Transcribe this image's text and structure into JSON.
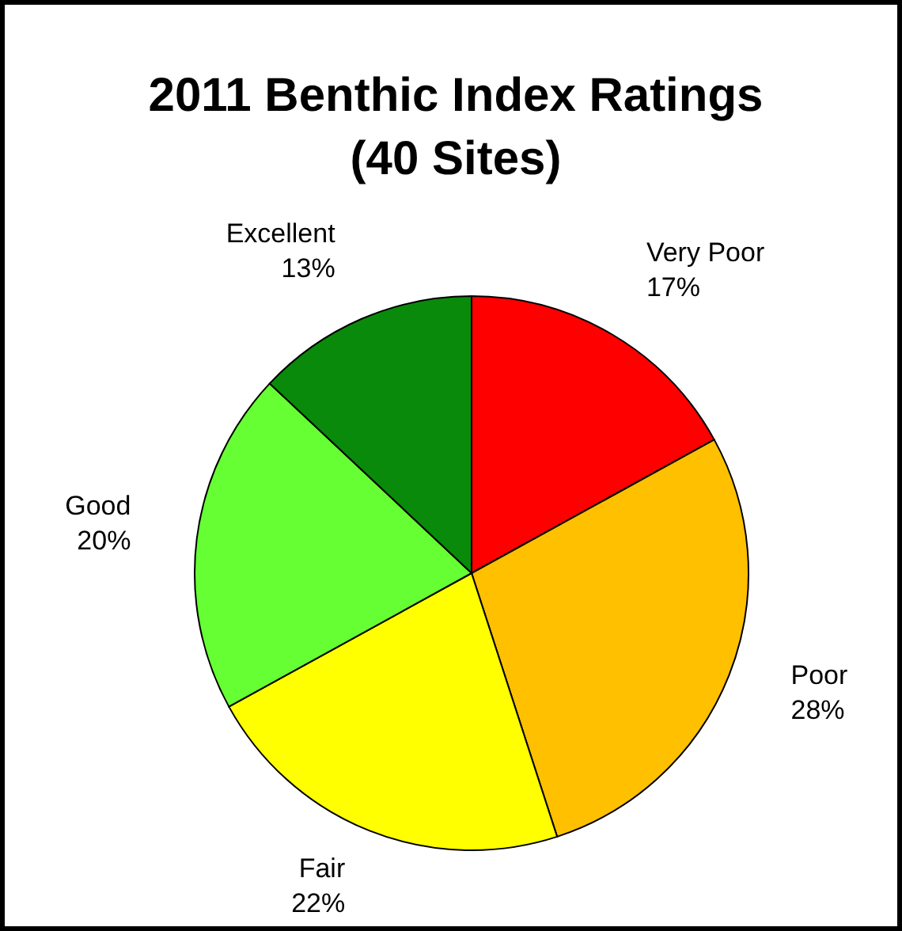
{
  "chart_data": {
    "type": "pie",
    "title": "2011 Benthic Index Ratings (40 Sites)",
    "categories": [
      "Very Poor",
      "Poor",
      "Fair",
      "Good",
      "Excellent"
    ],
    "values": [
      17,
      28,
      22,
      20,
      13
    ],
    "value_labels": [
      "17%",
      "28%",
      "22%",
      "20%",
      "13%"
    ],
    "colors": [
      "#ff0000",
      "#ffc000",
      "#ffff00",
      "#66ff33",
      "#0a8a0a"
    ],
    "legend": false
  }
}
